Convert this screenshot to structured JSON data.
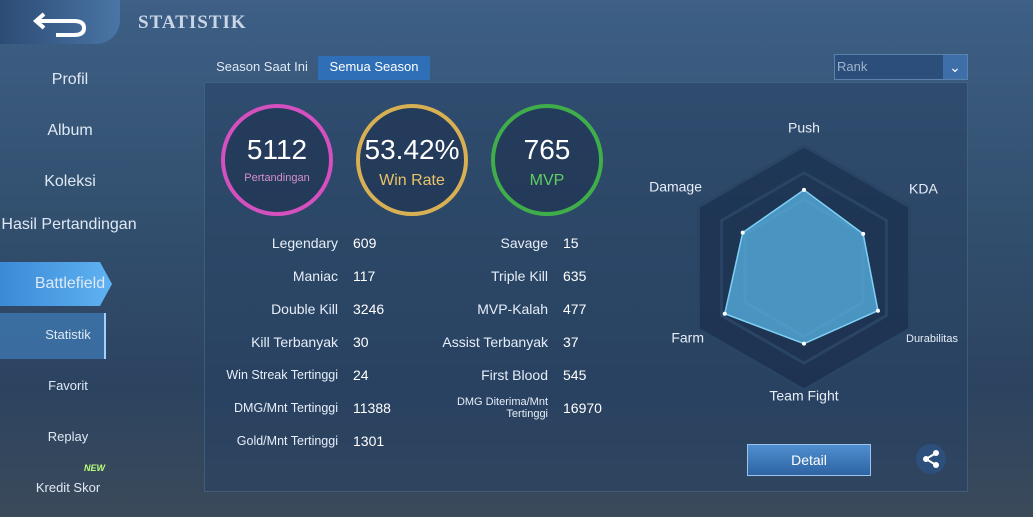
{
  "header": {
    "title": "STATISTIK"
  },
  "sidebar": {
    "items": [
      "Profil",
      "Album",
      "Koleksi",
      "Hasil Pertandingan",
      "Battlefield"
    ],
    "subitems": [
      "Statistik",
      "Favorit",
      "Replay",
      "Kredit Skor"
    ],
    "badge": "NEW"
  },
  "tabs": [
    "Season Saat Ini",
    "Semua Season"
  ],
  "filter": "Rank",
  "summary": [
    {
      "value": 5112,
      "label": "Pertandingan"
    },
    {
      "value": "53.42%",
      "label": "Win Rate"
    },
    {
      "value": 765,
      "label": "MVP"
    }
  ],
  "stats": {
    "left": [
      [
        "Legendary",
        609
      ],
      [
        "Maniac",
        117
      ],
      [
        "Double Kill",
        3246
      ],
      [
        "Kill Terbanyak",
        30
      ],
      [
        "Win Streak Tertinggi",
        24
      ],
      [
        "DMG/Mnt Tertinggi",
        11388
      ],
      [
        "Gold/Mnt Tertinggi",
        1301
      ]
    ],
    "right": [
      [
        "Savage",
        15
      ],
      [
        "Triple Kill",
        635
      ],
      [
        "MVP-Kalah",
        477
      ],
      [
        "Assist Terbanyak",
        37
      ],
      [
        "First Blood",
        545
      ],
      [
        "DMG Diterima/Mnt Tertinggi",
        16970
      ]
    ]
  },
  "radar": {
    "axes": [
      "Push",
      "KDA",
      "Durabilitas",
      "Team Fight",
      "Farm",
      "Damage"
    ],
    "values": [
      64,
      56,
      70,
      62,
      75,
      58
    ],
    "range": [
      0,
      100
    ]
  },
  "detail_button": "Detail"
}
